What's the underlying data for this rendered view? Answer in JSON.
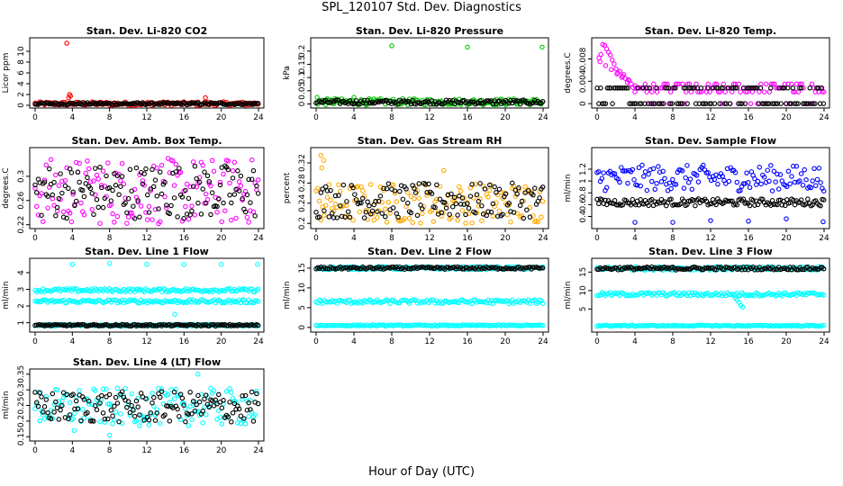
{
  "figure": {
    "title": "SPL_120107  Std. Dev. Diagnostics",
    "xlabel": "Hour of Day (UTC)"
  },
  "chart_data": [
    {
      "type": "scatter",
      "title": "Stan. Dev. Li-820 CO2",
      "ylabel": "Licor ppm",
      "xlim": [
        0,
        24
      ],
      "xticks": [
        0,
        4,
        8,
        12,
        16,
        20,
        24
      ],
      "ylim": [
        0,
        12
      ],
      "yticks": [
        0,
        2,
        4,
        6,
        8,
        10
      ],
      "series": [
        {
          "color": "#ff0000",
          "pattern": {
            "base": 0.3,
            "spread": 0.35
          },
          "x": [
            3.4,
            3.6,
            3.7,
            3.8,
            18.3
          ],
          "y": [
            11.5,
            1.4,
            2.0,
            1.7,
            1.4
          ]
        },
        {
          "color": "#000000",
          "pattern": {
            "base": 0.3,
            "spread": 0.2
          }
        }
      ]
    },
    {
      "type": "scatter",
      "title": "Stan. Dev. Li-820 Pressure",
      "ylabel": "kPa",
      "xlim": [
        0,
        24
      ],
      "xticks": [
        0,
        4,
        8,
        12,
        16,
        20,
        24
      ],
      "ylim": [
        -0.005,
        0.24
      ],
      "yticks": [
        0.0,
        0.05,
        0.1,
        0.15,
        0.2
      ],
      "series": [
        {
          "color": "#00cc00",
          "pattern": {
            "base": 0.008,
            "spread": 0.012
          },
          "x": [
            8.0,
            16.0,
            23.9,
            0.1,
            2.0,
            4.0
          ],
          "y": [
            0.22,
            0.215,
            0.215,
            0.025,
            0.02,
            0.025
          ]
        },
        {
          "color": "#000000",
          "pattern": {
            "base": 0.007,
            "spread": 0.008
          }
        }
      ]
    },
    {
      "type": "scatter",
      "title": "Stan. Dev. Li-820 Temp.",
      "ylabel": "degrees.C",
      "xlim": [
        0,
        24
      ],
      "xticks": [
        0,
        4,
        8,
        12,
        16,
        20,
        24
      ],
      "ylim": [
        -0.0003,
        0.0113
      ],
      "yticks": [
        0.0,
        0.004,
        0.008
      ],
      "series": [
        {
          "color": "#ff00ff",
          "x": [
            0.2,
            0.4,
            0.6,
            0.8,
            1.0,
            1.2,
            1.4,
            1.6,
            1.8,
            2.0,
            2.2,
            2.4,
            2.6,
            2.8,
            3.0,
            3.2,
            3.4,
            3.6,
            3.8,
            4.0,
            0.3,
            0.9,
            1.5,
            2.1,
            2.7,
            3.3
          ],
          "y": [
            0.0082,
            0.0088,
            0.0106,
            0.0104,
            0.0098,
            0.0092,
            0.0087,
            0.0078,
            0.0071,
            0.0062,
            0.0055,
            0.0058,
            0.0047,
            0.0052,
            0.0045,
            0.0038,
            0.0041,
            0.0035,
            0.0029,
            0.0032,
            0.0075,
            0.0068,
            0.0061,
            0.0053,
            0.0049,
            0.0043
          ]
        },
        {
          "color": "#ff00ff",
          "pattern": {
            "levels": [
              0.0,
              0.0028,
              0.0021,
              0.0035
            ],
            "from": 4.0
          }
        },
        {
          "color": "#000000",
          "pattern": {
            "levels": [
              0.0,
              0.0028
            ],
            "from": 0.0
          }
        }
      ]
    },
    {
      "type": "scatter",
      "title": "Stan. Dev. Amb. Box Temp.",
      "ylabel": "degrees.C",
      "xlim": [
        0,
        24
      ],
      "xticks": [
        0,
        4,
        8,
        12,
        16,
        20,
        24
      ],
      "ylim": [
        0.218,
        0.343
      ],
      "yticks": [
        0.22,
        0.26,
        0.3
      ],
      "series": [
        {
          "color": "#ff00ff",
          "pattern": {
            "base": 0.275,
            "spread": 0.055
          }
        },
        {
          "color": "#000000",
          "pattern": {
            "base": 0.275,
            "spread": 0.045
          }
        }
      ]
    },
    {
      "type": "scatter",
      "title": "Stan. Dev. Gas Stream RH",
      "ylabel": "percent",
      "xlim": [
        0,
        24
      ],
      "xticks": [
        0,
        4,
        8,
        12,
        16,
        20,
        24
      ],
      "ylim": [
        0.195,
        0.345
      ],
      "yticks": [
        0.2,
        0.24,
        0.28,
        0.32
      ],
      "series": [
        {
          "color": "#ffaa00",
          "pattern": {
            "base": 0.24,
            "spread": 0.04
          }
        },
        {
          "color": "#000000",
          "pattern": {
            "base": 0.245,
            "spread": 0.035
          }
        },
        {
          "color": "#ffaa00",
          "x": [
            0.5,
            0.8,
            0.6,
            13.5
          ],
          "y": [
            0.335,
            0.325,
            0.31,
            0.305
          ]
        }
      ]
    },
    {
      "type": "scatter",
      "title": "Stan. Dev. Sample Flow",
      "ylabel": "ml/min",
      "xlim": [
        0,
        24
      ],
      "xticks": [
        0,
        4,
        8,
        12,
        16,
        20,
        24
      ],
      "ylim": [
        0.24,
        1.52
      ],
      "yticks": [
        0.4,
        0.6,
        0.8,
        1.0,
        1.2
      ],
      "series": [
        {
          "color": "#0000ff",
          "pattern": {
            "base": 1.05,
            "spread": 0.22
          }
        },
        {
          "color": "#000000",
          "pattern": {
            "base": 0.64,
            "spread": 0.06
          }
        },
        {
          "color": "#0000ff",
          "x": [
            4.0,
            8.0,
            12.0,
            16.0,
            20.0,
            23.9
          ],
          "y": [
            0.3,
            0.3,
            0.33,
            0.32,
            0.36,
            0.31
          ]
        }
      ]
    },
    {
      "type": "scatter",
      "title": "Stan. Dev. Line 1 Flow",
      "ylabel": "ml/min",
      "xlim": [
        0,
        24
      ],
      "xticks": [
        0,
        4,
        8,
        12,
        16,
        20,
        24
      ],
      "ylim": [
        0.6,
        4.7
      ],
      "yticks": [
        1,
        2,
        3,
        4
      ],
      "series": [
        {
          "color": "#00ffff",
          "pattern": {
            "base": 2.95,
            "spread": 0.1
          }
        },
        {
          "color": "#00ffff",
          "pattern": {
            "base": 2.28,
            "spread": 0.1
          }
        },
        {
          "color": "#00ffff",
          "pattern": {
            "base": 0.85,
            "spread": 0.05
          }
        },
        {
          "color": "#000000",
          "pattern": {
            "base": 0.85,
            "spread": 0.05
          }
        },
        {
          "color": "#00ffff",
          "x": [
            4.0,
            8.0,
            12.0,
            16.0,
            20.0,
            23.9,
            15.0
          ],
          "y": [
            4.5,
            4.55,
            4.5,
            4.5,
            4.5,
            4.5,
            1.5
          ]
        }
      ]
    },
    {
      "type": "scatter",
      "title": "Stan. Dev. Line 2 Flow",
      "ylabel": "ml/min",
      "xlim": [
        0,
        24
      ],
      "xticks": [
        0,
        4,
        8,
        12,
        16,
        20,
        24
      ],
      "ylim": [
        -0.5,
        16.8
      ],
      "yticks": [
        0,
        5,
        10,
        15
      ],
      "series": [
        {
          "color": "#00ffff",
          "pattern": {
            "base": 15.0,
            "spread": 0.4
          }
        },
        {
          "color": "#000000",
          "pattern": {
            "base": 15.0,
            "spread": 0.3
          }
        },
        {
          "color": "#00ffff",
          "pattern": {
            "base": 6.5,
            "spread": 0.5
          }
        },
        {
          "color": "#00ffff",
          "pattern": {
            "base": 0.5,
            "spread": 0.15
          }
        }
      ]
    },
    {
      "type": "scatter",
      "title": "Stan. Dev. Line 3 Flow",
      "ylabel": "ml/min",
      "xlim": [
        0,
        24
      ],
      "xticks": [
        0,
        4,
        8,
        12,
        16,
        20,
        24
      ],
      "ylim": [
        -0.5,
        18.0
      ],
      "yticks": [
        5,
        10,
        15
      ],
      "series": [
        {
          "color": "#00ffff",
          "pattern": {
            "base": 16.0,
            "spread": 0.5
          }
        },
        {
          "color": "#000000",
          "pattern": {
            "base": 16.0,
            "spread": 0.4
          }
        },
        {
          "color": "#00ffff",
          "pattern": {
            "base": 9.0,
            "spread": 0.5
          }
        },
        {
          "color": "#00ffff",
          "pattern": {
            "base": 0.5,
            "spread": 0.15
          }
        },
        {
          "color": "#00ffff",
          "x": [
            14.6,
            14.8,
            15.0,
            15.2,
            15.4
          ],
          "y": [
            8.0,
            7.5,
            6.8,
            6.0,
            5.5
          ]
        }
      ]
    },
    {
      "type": "scatter",
      "title": "Stan. Dev. Line 4 (LT) Flow",
      "ylabel": "ml/min",
      "xlim": [
        0,
        24
      ],
      "xticks": [
        0,
        4,
        8,
        12,
        16,
        20,
        24
      ],
      "ylim": [
        0.145,
        0.358
      ],
      "yticks": [
        0.15,
        0.2,
        0.25,
        0.3,
        0.35
      ],
      "series": [
        {
          "color": "#00ffff",
          "pattern": {
            "base": 0.245,
            "spread": 0.06
          }
        },
        {
          "color": "#000000",
          "pattern": {
            "base": 0.245,
            "spread": 0.05
          }
        },
        {
          "color": "#00ffff",
          "x": [
            17.5,
            8.0,
            4.2
          ],
          "y": [
            0.35,
            0.155,
            0.17
          ]
        }
      ]
    }
  ]
}
